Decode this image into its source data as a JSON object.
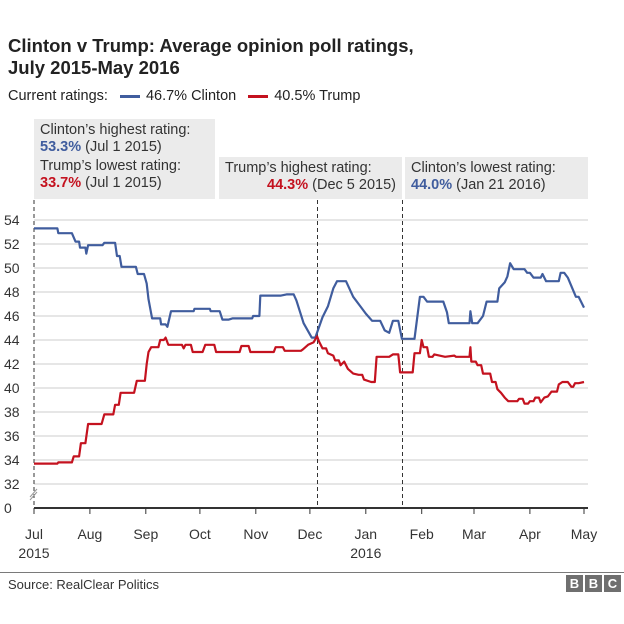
{
  "header": {
    "title_line1": "Clinton v Trump: Average opinion poll ratings,",
    "title_line2": "July 2015-May 2016"
  },
  "legend": {
    "prefix": "Current ratings:",
    "items": [
      {
        "label": "46.7% Clinton",
        "color": "#405d9e"
      },
      {
        "label": "40.5% Trump",
        "color": "#c4121f"
      }
    ]
  },
  "annotations": {
    "clinton_high": {
      "heading": "Clinton’s highest rating:",
      "value": "53.3%",
      "date": " (Jul 1 2015)"
    },
    "trump_low": {
      "heading": "Trump’s lowest rating:",
      "value": "33.7%",
      "date": " (Jul 1 2015)"
    },
    "trump_high": {
      "heading": "Trump’s highest rating:",
      "value": "44.3%",
      "date": " (Dec 5 2015)"
    },
    "clinton_low": {
      "heading": "Clinton’s lowest rating:",
      "value": "44.0%",
      "date": " (Jan 21 2016)"
    }
  },
  "footer": {
    "source": "Source: RealClear Politics",
    "logo_letters": [
      "B",
      "B",
      "C"
    ]
  },
  "chart_data": {
    "type": "line",
    "title": "Clinton v Trump: Average opinion poll ratings, July 2015-May 2016",
    "xlabel": "",
    "ylabel": "",
    "x_unit": "days since Jul 1 2015",
    "xlim": [
      0,
      308
    ],
    "ylim": [
      32,
      55
    ],
    "y_axis_break": true,
    "yticks": [
      0,
      32,
      34,
      36,
      38,
      40,
      42,
      44,
      46,
      48,
      50,
      52,
      54
    ],
    "xticks": [
      {
        "day": 0,
        "label": "Jul",
        "sub": "2015"
      },
      {
        "day": 31,
        "label": "Aug",
        "sub": ""
      },
      {
        "day": 62,
        "label": "Sep",
        "sub": ""
      },
      {
        "day": 92,
        "label": "Oct",
        "sub": ""
      },
      {
        "day": 123,
        "label": "Nov",
        "sub": ""
      },
      {
        "day": 153,
        "label": "Dec",
        "sub": ""
      },
      {
        "day": 184,
        "label": "Jan",
        "sub": "2016"
      },
      {
        "day": 215,
        "label": "Feb",
        "sub": ""
      },
      {
        "day": 244,
        "label": "Mar",
        "sub": ""
      },
      {
        "day": 275,
        "label": "Apr",
        "sub": ""
      },
      {
        "day": 305,
        "label": "May",
        "sub": ""
      }
    ],
    "grid": true,
    "legend_position": "top",
    "reference_lines": [
      {
        "day": 157,
        "label": "Dec 5 2015"
      },
      {
        "day": 204,
        "label": "Jan 21 2016"
      }
    ],
    "series": [
      {
        "name": "Clinton",
        "color": "#405d9e",
        "current": 46.7,
        "points": [
          [
            0,
            53.3
          ],
          [
            13,
            53.3
          ],
          [
            13.5,
            52.9
          ],
          [
            21,
            52.9
          ],
          [
            23,
            52.2
          ],
          [
            25,
            52.2
          ],
          [
            25.5,
            51.7
          ],
          [
            28.5,
            51.7
          ],
          [
            29,
            51.2
          ],
          [
            30,
            51.9
          ],
          [
            38,
            51.9
          ],
          [
            39,
            52.1
          ],
          [
            45,
            52.1
          ],
          [
            46,
            51.0
          ],
          [
            47.5,
            51.0
          ],
          [
            48.5,
            50.1
          ],
          [
            56.5,
            50.1
          ],
          [
            57.5,
            49.5
          ],
          [
            61,
            49.5
          ],
          [
            62.5,
            48.7
          ],
          [
            63.5,
            47.4
          ],
          [
            65.5,
            45.8
          ],
          [
            70,
            45.8
          ],
          [
            70.5,
            45.3
          ],
          [
            73,
            45.3
          ],
          [
            74,
            45.1
          ],
          [
            76,
            46.4
          ],
          [
            88.5,
            46.4
          ],
          [
            89,
            46.6
          ],
          [
            97.5,
            46.6
          ],
          [
            98,
            46.4
          ],
          [
            103,
            46.4
          ],
          [
            104.5,
            45.7
          ],
          [
            108,
            45.7
          ],
          [
            110,
            45.8
          ],
          [
            121,
            45.8
          ],
          [
            121.5,
            46.0
          ],
          [
            125,
            46.0
          ],
          [
            125.5,
            47.7
          ],
          [
            137,
            47.7
          ],
          [
            140,
            47.8
          ],
          [
            144,
            47.8
          ],
          [
            145.5,
            47.3
          ],
          [
            149.5,
            45.4
          ],
          [
            154,
            44.2
          ],
          [
            156,
            44.2
          ],
          [
            160,
            45.9
          ],
          [
            163,
            46.8
          ],
          [
            166,
            48.3
          ],
          [
            168,
            48.9
          ],
          [
            173,
            48.9
          ],
          [
            177,
            47.6
          ],
          [
            181,
            46.8
          ],
          [
            184,
            46.2
          ],
          [
            187.5,
            45.6
          ],
          [
            192,
            45.6
          ],
          [
            194.5,
            44.8
          ],
          [
            197,
            44.6
          ],
          [
            199,
            45.6
          ],
          [
            202,
            45.6
          ],
          [
            204,
            44.1
          ],
          [
            211,
            44.1
          ],
          [
            214,
            47.6
          ],
          [
            216,
            47.6
          ],
          [
            218,
            47.2
          ],
          [
            227,
            47.2
          ],
          [
            229,
            46.3
          ],
          [
            230,
            45.4
          ],
          [
            241.5,
            45.4
          ],
          [
            242,
            46.4
          ],
          [
            243,
            45.4
          ],
          [
            246,
            45.4
          ],
          [
            249,
            46.0
          ],
          [
            251,
            47.2
          ],
          [
            257,
            47.2
          ],
          [
            258,
            48.3
          ],
          [
            261,
            48.8
          ],
          [
            262.5,
            49.3
          ],
          [
            264,
            50.4
          ],
          [
            266,
            49.9
          ],
          [
            272,
            49.9
          ],
          [
            273.5,
            49.6
          ],
          [
            275,
            49.6
          ],
          [
            277,
            49.2
          ],
          [
            281,
            49.2
          ],
          [
            282,
            49.5
          ],
          [
            284,
            48.9
          ],
          [
            291,
            48.9
          ],
          [
            292,
            49.6
          ],
          [
            294,
            49.6
          ],
          [
            296,
            49.2
          ],
          [
            300.5,
            47.6
          ],
          [
            302,
            47.6
          ],
          [
            305,
            46.7
          ]
        ]
      },
      {
        "name": "Trump",
        "color": "#c4121f",
        "points": [
          [
            0,
            33.7
          ],
          [
            13,
            33.7
          ],
          [
            13.5,
            33.8
          ],
          [
            21,
            33.8
          ],
          [
            22,
            34.3
          ],
          [
            25,
            34.3
          ],
          [
            26,
            35.4
          ],
          [
            28.5,
            35.4
          ],
          [
            30,
            37.0
          ],
          [
            37.5,
            37.0
          ],
          [
            39,
            37.8
          ],
          [
            44,
            37.8
          ],
          [
            45,
            38.6
          ],
          [
            47,
            38.6
          ],
          [
            48,
            39.6
          ],
          [
            55.5,
            39.6
          ],
          [
            57,
            40.6
          ],
          [
            61.5,
            40.6
          ],
          [
            62.5,
            42.0
          ],
          [
            63.5,
            43.0
          ],
          [
            65,
            43.4
          ],
          [
            69,
            43.4
          ],
          [
            70,
            44.0
          ],
          [
            72,
            44.0
          ],
          [
            73,
            44.2
          ],
          [
            74.5,
            43.6
          ],
          [
            82,
            43.6
          ],
          [
            83,
            43.3
          ],
          [
            84,
            43.6
          ],
          [
            87,
            43.6
          ],
          [
            88,
            43.0
          ],
          [
            93.5,
            43.0
          ],
          [
            95,
            43.6
          ],
          [
            100,
            43.6
          ],
          [
            101,
            43.0
          ],
          [
            114,
            43.0
          ],
          [
            115,
            43.5
          ],
          [
            119,
            43.5
          ],
          [
            120,
            43.0
          ],
          [
            133,
            43.0
          ],
          [
            134,
            43.4
          ],
          [
            138,
            43.4
          ],
          [
            139,
            43.1
          ],
          [
            148,
            43.1
          ],
          [
            149,
            43.2
          ],
          [
            152,
            43.6
          ],
          [
            155,
            43.8
          ],
          [
            157,
            44.3
          ],
          [
            158,
            43.9
          ],
          [
            160,
            43.3
          ],
          [
            162,
            43.3
          ],
          [
            163,
            42.9
          ],
          [
            166,
            42.7
          ],
          [
            167,
            42.3
          ],
          [
            169,
            42.3
          ],
          [
            170,
            41.9
          ],
          [
            172,
            42.2
          ],
          [
            174,
            41.6
          ],
          [
            177,
            41.2
          ],
          [
            180,
            41.1
          ],
          [
            182,
            41.1
          ],
          [
            183,
            40.7
          ],
          [
            187,
            40.5
          ],
          [
            189,
            40.5
          ],
          [
            190,
            42.6
          ],
          [
            197,
            42.6
          ],
          [
            199,
            42.8
          ],
          [
            202,
            42.8
          ],
          [
            203,
            41.3
          ],
          [
            210,
            41.3
          ],
          [
            211,
            42.9
          ],
          [
            214,
            42.9
          ],
          [
            215,
            44.0
          ],
          [
            216,
            43.4
          ],
          [
            218,
            43.4
          ],
          [
            219,
            42.6
          ],
          [
            221,
            42.6
          ],
          [
            222,
            42.8
          ],
          [
            228,
            42.6
          ],
          [
            233,
            42.7
          ],
          [
            234,
            42.6
          ],
          [
            241.5,
            42.6
          ],
          [
            242,
            43.4
          ],
          [
            242.5,
            42.2
          ],
          [
            245,
            42.2
          ],
          [
            246,
            41.9
          ],
          [
            248,
            41.9
          ],
          [
            249,
            41.2
          ],
          [
            253,
            41.2
          ],
          [
            254,
            40.5
          ],
          [
            256,
            40.5
          ],
          [
            257,
            39.9
          ],
          [
            259,
            39.6
          ],
          [
            261,
            39.2
          ],
          [
            263,
            38.9
          ],
          [
            266,
            38.9
          ],
          [
            268,
            38.9
          ],
          [
            269,
            39.1
          ],
          [
            271,
            39.1
          ],
          [
            272,
            38.7
          ],
          [
            274,
            38.7
          ],
          [
            275,
            38.9
          ],
          [
            277,
            38.9
          ],
          [
            278,
            39.2
          ],
          [
            280,
            39.2
          ],
          [
            281,
            38.8
          ],
          [
            283,
            39.2
          ],
          [
            285,
            39.3
          ],
          [
            287,
            39.7
          ],
          [
            290,
            39.7
          ],
          [
            291,
            40.3
          ],
          [
            293,
            40.5
          ],
          [
            296,
            40.5
          ],
          [
            298,
            40.1
          ],
          [
            299,
            40.1
          ],
          [
            300,
            40.4
          ],
          [
            302,
            40.4
          ],
          [
            305,
            40.5
          ]
        ]
      }
    ]
  }
}
